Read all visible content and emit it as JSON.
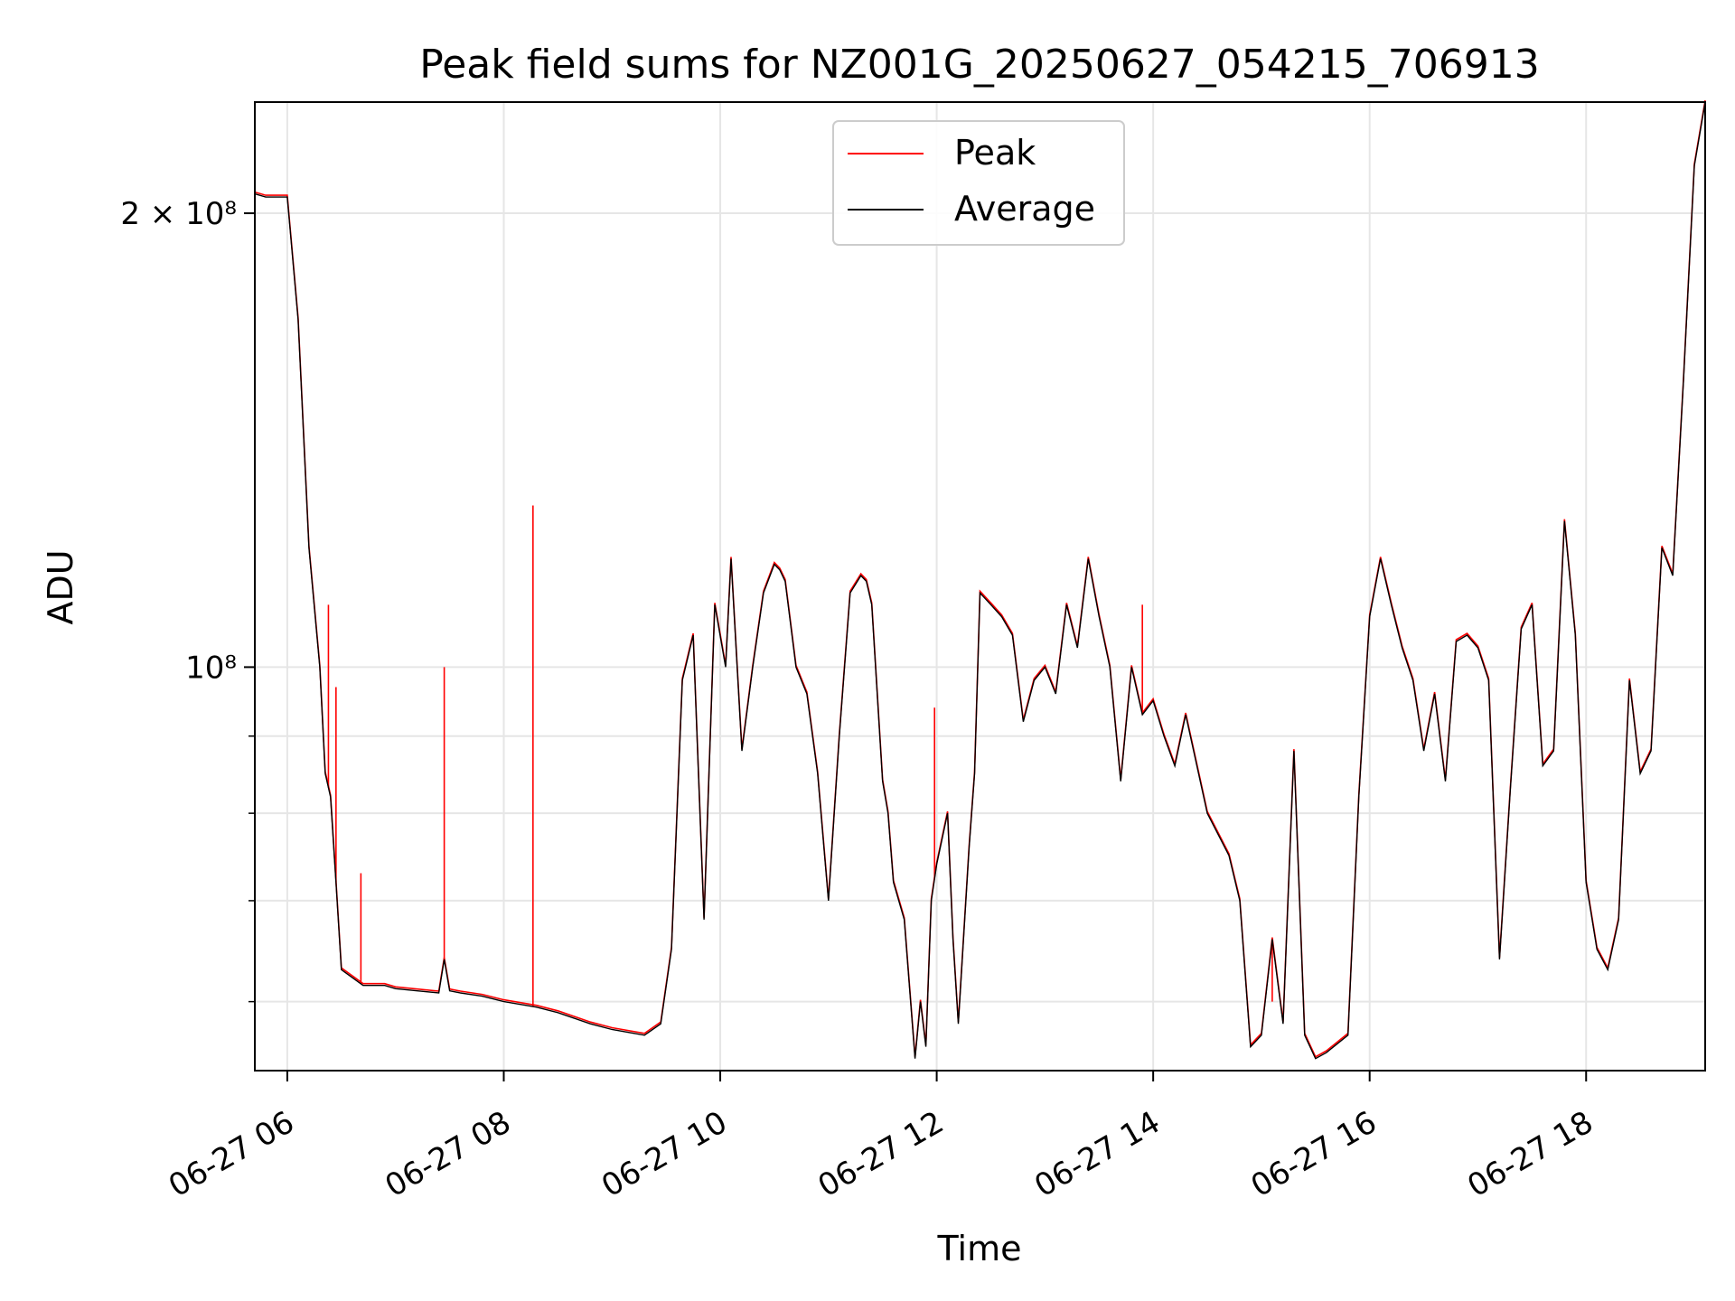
{
  "chart_data": {
    "type": "line",
    "title": "Peak field sums for NZ001G_20250627_054215_706913",
    "xlabel": "Time",
    "ylabel": "ADU",
    "x_ticks": [
      "06-27 06",
      "06-27 08",
      "06-27 10",
      "06-27 12",
      "06-27 14",
      "06-27 16",
      "06-27 18"
    ],
    "y_ticks": [
      {
        "label": "2 × 10⁸",
        "value": 200000000
      },
      {
        "label": "10⁸",
        "value": 100000000
      }
    ],
    "y_scale": "log",
    "xlim": [
      "06-27 05:42",
      "06-27 19:06"
    ],
    "ylim": [
      54000000,
      237000000
    ],
    "grid": true,
    "legend": {
      "location": "upper center",
      "entries": [
        "Peak",
        "Average"
      ]
    },
    "series": [
      {
        "name": "Average",
        "color": "#000000",
        "x": [
          5.7,
          5.8,
          5.9,
          6.0,
          6.1,
          6.2,
          6.3,
          6.35,
          6.4,
          6.45,
          6.5,
          6.7,
          6.9,
          7.0,
          7.2,
          7.4,
          7.45,
          7.5,
          7.6,
          7.8,
          8.0,
          8.3,
          8.5,
          8.8,
          9.0,
          9.3,
          9.45,
          9.55,
          9.65,
          9.75,
          9.85,
          9.95,
          10.05,
          10.1,
          10.2,
          10.3,
          10.4,
          10.5,
          10.55,
          10.6,
          10.7,
          10.8,
          10.9,
          11.0,
          11.1,
          11.2,
          11.3,
          11.35,
          11.4,
          11.5,
          11.55,
          11.6,
          11.7,
          11.8,
          11.85,
          11.9,
          11.95,
          12.0,
          12.1,
          12.15,
          12.2,
          12.3,
          12.35,
          12.4,
          12.5,
          12.6,
          12.7,
          12.8,
          12.9,
          13.0,
          13.1,
          13.2,
          13.3,
          13.4,
          13.5,
          13.6,
          13.7,
          13.8,
          13.9,
          14.0,
          14.1,
          14.2,
          14.3,
          14.5,
          14.7,
          14.8,
          14.9,
          15.0,
          15.1,
          15.2,
          15.3,
          15.4,
          15.5,
          15.6,
          15.8,
          15.9,
          16.0,
          16.1,
          16.2,
          16.3,
          16.4,
          16.5,
          16.6,
          16.7,
          16.8,
          16.9,
          17.0,
          17.1,
          17.2,
          17.3,
          17.4,
          17.5,
          17.6,
          17.7,
          17.8,
          17.9,
          18.0,
          18.1,
          18.2,
          18.3,
          18.4,
          18.5,
          18.6,
          18.7,
          18.8,
          18.9,
          19.0,
          19.1
        ],
        "y": [
          206000000,
          205000000,
          205000000,
          205000000,
          170000000,
          120000000,
          100000000,
          85000000,
          82000000,
          72000000,
          63000000,
          61500000,
          61500000,
          61200000,
          61000000,
          60800000,
          64000000,
          61000000,
          60800000,
          60500000,
          60000000,
          59500000,
          59000000,
          58000000,
          57500000,
          57000000,
          58000000,
          65000000,
          98000000,
          105000000,
          68000000,
          110000000,
          100000000,
          118000000,
          88000000,
          100000000,
          112000000,
          117000000,
          116000000,
          114000000,
          100000000,
          96000000,
          85000000,
          70000000,
          90000000,
          112000000,
          115000000,
          114000000,
          110000000,
          84000000,
          80000000,
          72000000,
          68000000,
          55000000,
          60000000,
          56000000,
          70000000,
          74000000,
          80000000,
          66000000,
          58000000,
          76000000,
          85000000,
          112000000,
          110000000,
          108000000,
          105000000,
          92000000,
          98000000,
          100000000,
          96000000,
          110000000,
          103000000,
          118000000,
          108000000,
          100000000,
          84000000,
          100000000,
          93000000,
          95000000,
          90000000,
          86000000,
          93000000,
          80000000,
          75000000,
          70000000,
          56000000,
          57000000,
          66000000,
          58000000,
          88000000,
          57000000,
          55000000,
          55500000,
          57000000,
          82000000,
          108000000,
          118000000,
          110000000,
          103000000,
          98000000,
          88000000,
          96000000,
          84000000,
          104000000,
          105000000,
          103000000,
          98000000,
          64000000,
          83000000,
          106000000,
          110000000,
          86000000,
          88000000,
          125000000,
          105000000,
          72000000,
          65000000,
          63000000,
          68000000,
          98000000,
          85000000,
          88000000,
          120000000,
          115000000,
          155000000,
          215000000,
          237000000
        ]
      },
      {
        "name": "Peak",
        "color": "#ff0000",
        "spikes": [
          {
            "x": 6.38,
            "y": 110000000
          },
          {
            "x": 6.45,
            "y": 97000000
          },
          {
            "x": 6.68,
            "y": 73000000
          },
          {
            "x": 7.45,
            "y": 100000000
          },
          {
            "x": 8.27,
            "y": 128000000
          },
          {
            "x": 11.98,
            "y": 94000000
          },
          {
            "x": 13.9,
            "y": 110000000
          },
          {
            "x": 15.1,
            "y": 60000000
          }
        ]
      }
    ]
  }
}
